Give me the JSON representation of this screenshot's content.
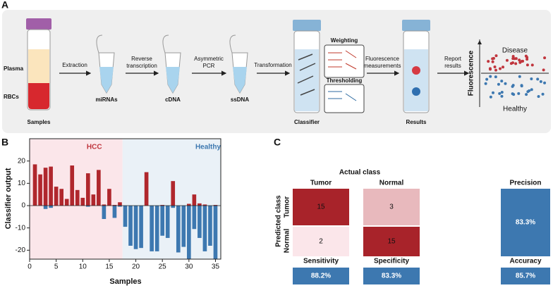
{
  "panel_a": {
    "label": "A",
    "samples": "Samples",
    "plasma": "Plasma",
    "rbcs": "RBCs",
    "extraction": "Extraction",
    "reverse_transcription": [
      "Reverse",
      "transcription"
    ],
    "mirnas": "miRNAs",
    "asymmetric_pcr": [
      "Asymmetric",
      "PCR"
    ],
    "cdna": "cDNA",
    "ssdna": "ssDNA",
    "transformation": "Transformation",
    "classifier": "Classifier",
    "weighting": "Weighting",
    "thresholding": "Thresholding",
    "fluorescence_measurements": [
      "Fluorescence",
      "measurements"
    ],
    "results": "Results",
    "report_results": [
      "Report",
      "results"
    ],
    "disease": "Disease",
    "healthy": "Healthy",
    "fluorescence": "Fluorescence"
  },
  "chart_data": {
    "type": "bar",
    "panel_label": "B",
    "x_label": "Samples",
    "y_label": "Classifier output",
    "x": [
      1,
      2,
      3,
      4,
      5,
      6,
      7,
      8,
      9,
      10,
      11,
      12,
      13,
      14,
      15,
      16,
      17,
      18,
      19,
      20,
      21,
      22,
      23,
      24,
      25,
      26,
      27,
      28,
      29,
      30,
      31,
      32,
      33,
      34,
      35
    ],
    "series": [
      {
        "color": "#b0272d",
        "values": [
          18.5,
          14,
          17,
          17.5,
          8.5,
          7.5,
          3,
          18,
          7,
          3.5,
          14.5,
          5,
          16,
          0.5,
          7.5,
          0.3,
          1.5,
          0,
          0,
          0,
          0,
          15,
          0,
          0,
          0.3,
          0,
          11,
          0,
          0,
          0.8,
          5,
          1,
          0.5,
          0,
          0.3
        ]
      },
      {
        "color": "#3d78b0",
        "values": [
          0,
          0,
          -1.5,
          -1,
          0,
          0,
          0,
          0,
          0,
          0,
          -0.5,
          0,
          0,
          -6,
          0,
          -5.5,
          -0.5,
          -9.5,
          -18,
          -19.5,
          -19,
          0,
          -20.5,
          -20.5,
          -13.5,
          -14.5,
          -1,
          -21,
          -18.5,
          -24,
          -10.5,
          -14.5,
          -20.5,
          -18,
          -24
        ]
      }
    ],
    "regions": [
      {
        "label": "HCC",
        "start": 0,
        "end": 17.5,
        "color": "#fbe6ea"
      },
      {
        "label": "Healthy",
        "start": 17.5,
        "end": 36,
        "color": "#eaf1f7"
      }
    ],
    "xlim": [
      0,
      36
    ],
    "xticks": [
      0,
      5,
      10,
      15,
      20,
      25,
      30,
      35
    ],
    "ylim": [
      -24,
      30
    ],
    "yticks": [
      -20,
      -10,
      0,
      10,
      20
    ]
  },
  "panel_c": {
    "label": "C",
    "actual_class": "Actual class",
    "predicted_class": "Predicted class",
    "columns": [
      "Tumor",
      "Normal"
    ],
    "rows": [
      "Tumor",
      "Normal"
    ],
    "matrix": [
      [
        15,
        3
      ],
      [
        2,
        15
      ]
    ],
    "precision": "Precision",
    "precision_value": "83.3%",
    "sensitivity": "Sensitivity",
    "sensitivity_value": "88.2%",
    "specificity": "Specificity",
    "specificity_value": "83.3%",
    "accuracy": "Accuracy",
    "accuracy_value": "85.7%"
  }
}
